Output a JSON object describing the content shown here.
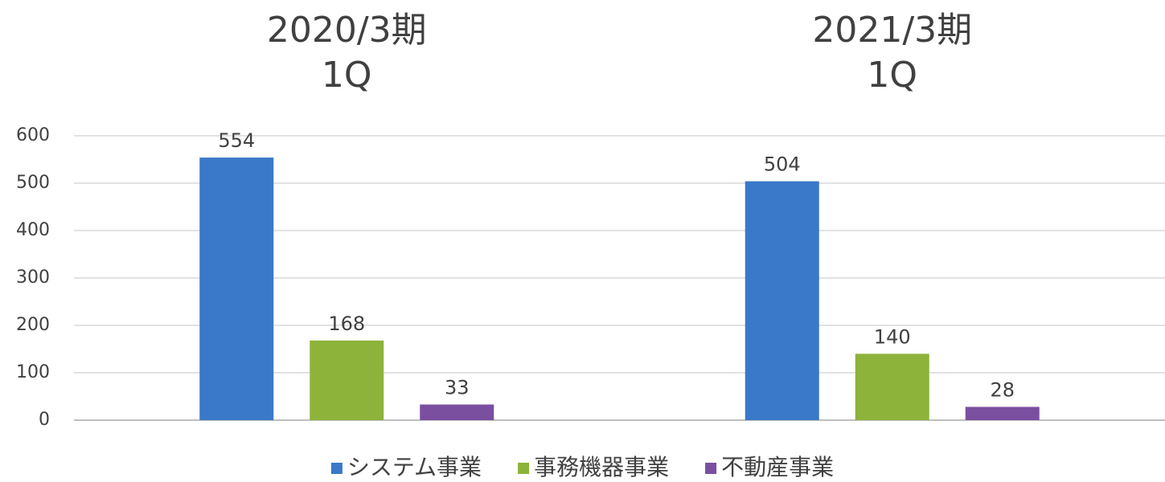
{
  "chart_data": {
    "type": "bar",
    "categories": [
      "2020/3期\n1Q",
      "2021/3期\n1Q"
    ],
    "series": [
      {
        "name": "システム事業",
        "color": "#3a78c9",
        "values": [
          554,
          504
        ]
      },
      {
        "name": "事務機器事業",
        "color": "#8db33a",
        "values": [
          168,
          140
        ]
      },
      {
        "name": "不動産事業",
        "color": "#7a4fa0",
        "values": [
          33,
          28
        ]
      }
    ],
    "ylim": [
      0,
      600
    ],
    "yticks": [
      0,
      100,
      200,
      300,
      400,
      500,
      600
    ],
    "grid": true,
    "legend": "bottom"
  }
}
